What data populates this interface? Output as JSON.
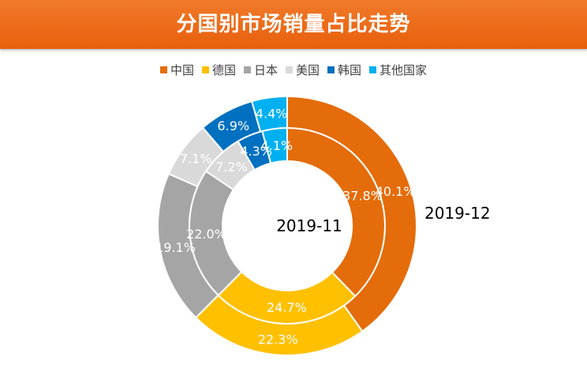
{
  "chart_data": {
    "type": "donut",
    "title": "分国别市场销量占比走势",
    "legend_position": "top",
    "categories": [
      "中国",
      "德国",
      "日本",
      "美国",
      "韩国",
      "其他国家"
    ],
    "colors": [
      "#E46C0A",
      "#FFC000",
      "#A5A5A5",
      "#D9D9D9",
      "#0070C0",
      "#00B0F0"
    ],
    "series": [
      {
        "name": "2019-11",
        "ring": "inner",
        "values": [
          37.8,
          24.7,
          22.0,
          7.2,
          4.3,
          4.1
        ],
        "labels": [
          "37.8%",
          "24.7%",
          "22.0%",
          "7.2%",
          "4.3%",
          "4.1%"
        ]
      },
      {
        "name": "2019-12",
        "ring": "outer",
        "values": [
          40.1,
          22.3,
          19.1,
          7.1,
          6.9,
          4.4
        ],
        "labels": [
          "40.1%",
          "22.3%",
          "19.1%",
          "7.1%",
          "6.9%",
          "4.4%"
        ]
      }
    ]
  }
}
